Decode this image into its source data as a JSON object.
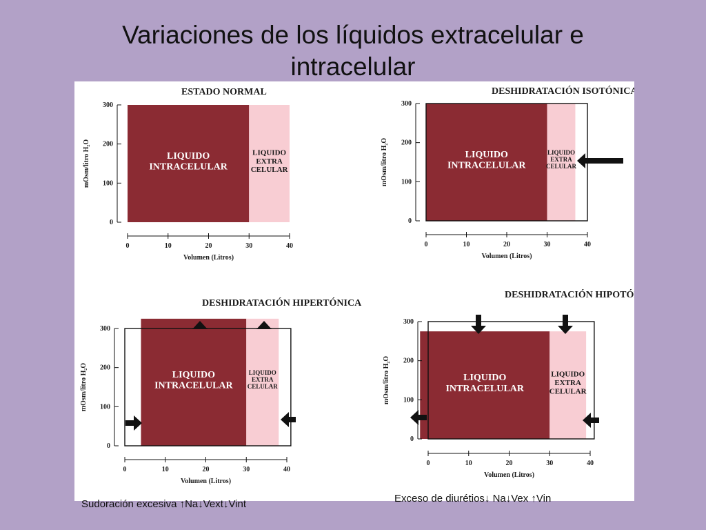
{
  "slide": {
    "title_line1": "Variaciones de los líquidos extracelular e",
    "title_line2": "intracelular"
  },
  "captions": {
    "left": "Sudoración excesiva ↑Na↓Vext↓Vint",
    "right": "Exceso de diurétios↓ Na↓Vex ↑Vin"
  },
  "colors": {
    "intracellular": "#8b2b33",
    "extracellular": "#f8cdd3",
    "background": "#b2a1c7"
  },
  "chart_data": [
    {
      "type": "bar",
      "title": "ESTADO NORMAL",
      "xlabel": "Volumen (Litros)",
      "ylabel": "mOsm/litro H₂O",
      "xticks": [
        "0",
        "10",
        "20",
        "30",
        "40"
      ],
      "yticks": [
        "0",
        "100",
        "200",
        "300"
      ],
      "xlim": [
        0,
        40
      ],
      "ylim": [
        0,
        300
      ],
      "regions": [
        {
          "name": "intracellular",
          "label": "LIQUIDO\nINTRACELULAR",
          "x_from": 0,
          "x_to": 30,
          "osm": 300
        },
        {
          "name": "extracellular",
          "label": "LIQUIDO\nEXTRA\nCELULAR",
          "x_from": 30,
          "x_to": 40,
          "osm": 300
        }
      ]
    },
    {
      "type": "bar",
      "title": "DESHIDRATACIÓN ISOTÓNICA",
      "xlabel": "Volumen (Litros)",
      "ylabel": "mOsm/litro H₂O",
      "xticks": [
        "0",
        "10",
        "20",
        "30",
        "40"
      ],
      "yticks": [
        "0",
        "100",
        "200",
        "300"
      ],
      "xlim": [
        0,
        40
      ],
      "ylim": [
        0,
        300
      ],
      "regions": [
        {
          "name": "intracellular",
          "label": "LIQUIDO\nINTRACELULAR",
          "x_from": 0,
          "x_to": 30,
          "osm": 300
        },
        {
          "name": "extracellular",
          "label": "LIQUIDO\nEXTRA\nCELULAR",
          "x_from": 30,
          "x_to": 37,
          "osm": 300
        }
      ],
      "normal_outline": {
        "x_to": 40,
        "osm": 300
      }
    },
    {
      "type": "bar",
      "title": "DESHIDRATACIÓN  HIPERTÓNICA",
      "xlabel": "Volumen (Litros)",
      "ylabel": "mOsm/litro H₂O",
      "xticks": [
        "0",
        "10",
        "20",
        "30",
        "40"
      ],
      "yticks": [
        "0",
        "100",
        "200",
        "300"
      ],
      "xlim": [
        0,
        40
      ],
      "ylim": [
        0,
        300
      ],
      "regions": [
        {
          "name": "intracellular",
          "label": "LIQUIDO\nINTRACELULAR",
          "x_from": 4,
          "x_to": 30,
          "osm": 325
        },
        {
          "name": "extracellular",
          "label": "LIQUIDO\nEXTRA\nCELULAR",
          "x_from": 30,
          "x_to": 38,
          "osm": 325
        }
      ],
      "normal_outline": {
        "x_from": 0,
        "x_to": 41,
        "osm": 300
      }
    },
    {
      "type": "bar",
      "title": "DESHIDRATACIÓN  HIPOTÓNICA",
      "xlabel": "Volumen (Litros)",
      "ylabel": "mOsm/litro H₂O",
      "xticks": [
        "0",
        "10",
        "20",
        "30",
        "40"
      ],
      "yticks": [
        "0",
        "100",
        "200",
        "300"
      ],
      "xlim": [
        0,
        40
      ],
      "ylim": [
        0,
        300
      ],
      "regions": [
        {
          "name": "intracellular",
          "label": "LIQUIDO\nINTRACELULAR",
          "x_from": -2,
          "x_to": 30,
          "osm": 275
        },
        {
          "name": "extracellular",
          "label": "LIQUIDO\nEXTRA\nCELULAR",
          "x_from": 30,
          "x_to": 39,
          "osm": 275
        }
      ],
      "normal_outline": {
        "x_from": 0,
        "x_to": 41,
        "osm": 300
      }
    }
  ]
}
